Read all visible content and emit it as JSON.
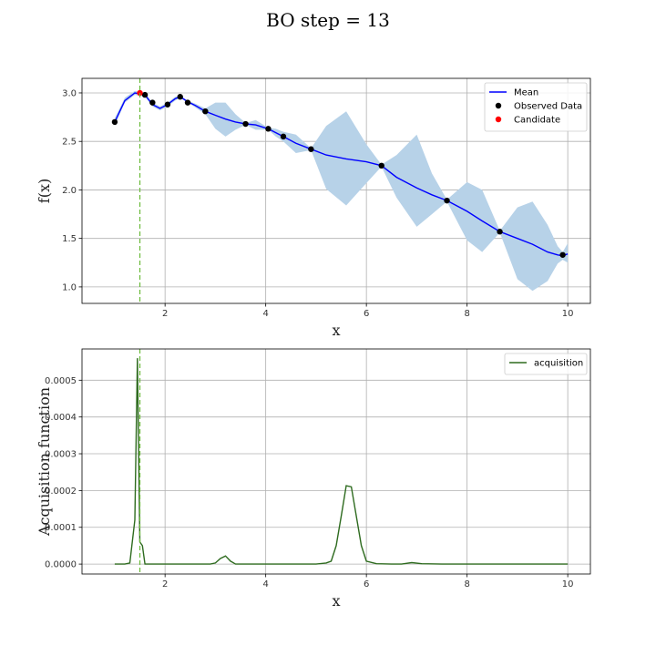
{
  "figure": {
    "title": "BO step = 13"
  },
  "colors": {
    "mean": "#0000ff",
    "band": "#b7d2e8",
    "observed": "#000000",
    "candidate": "#ff0000",
    "acquisition": "#2e6b1f",
    "vline": "#6aba3a"
  },
  "chart_data": [
    {
      "type": "line",
      "xlabel": "x",
      "ylabel": "f(x)",
      "xlim": [
        0.35,
        10.45
      ],
      "ylim": [
        0.83,
        3.15
      ],
      "xticks": [
        2,
        4,
        6,
        8,
        10
      ],
      "yticks": [
        1.0,
        1.5,
        2.0,
        2.5,
        3.0
      ],
      "grid": true,
      "legend": {
        "placement": "top-right",
        "entries": [
          "Mean",
          "Observed Data",
          "Candidate"
        ]
      },
      "candidate_x": 1.5,
      "series": [
        {
          "name": "Mean",
          "x": [
            1.0,
            1.2,
            1.4,
            1.6,
            1.75,
            1.9,
            2.05,
            2.2,
            2.3,
            2.45,
            2.6,
            2.8,
            3.0,
            3.2,
            3.4,
            3.6,
            3.8,
            4.05,
            4.2,
            4.35,
            4.6,
            4.9,
            5.2,
            5.6,
            6.0,
            6.3,
            6.6,
            7.0,
            7.3,
            7.6,
            8.0,
            8.3,
            8.65,
            9.0,
            9.3,
            9.6,
            9.8,
            9.9,
            10.0
          ],
          "y": [
            2.7,
            2.92,
            3.0,
            2.98,
            2.88,
            2.84,
            2.88,
            2.94,
            2.96,
            2.91,
            2.87,
            2.81,
            2.77,
            2.73,
            2.7,
            2.68,
            2.67,
            2.63,
            2.59,
            2.55,
            2.48,
            2.42,
            2.36,
            2.32,
            2.29,
            2.25,
            2.13,
            2.02,
            1.95,
            1.89,
            1.78,
            1.68,
            1.57,
            1.5,
            1.44,
            1.36,
            1.33,
            1.32,
            1.34
          ]
        },
        {
          "name": "confidence",
          "x": [
            1.0,
            1.2,
            1.4,
            1.6,
            1.75,
            1.9,
            2.05,
            2.2,
            2.3,
            2.45,
            2.6,
            2.8,
            3.0,
            3.2,
            3.4,
            3.6,
            3.8,
            4.05,
            4.2,
            4.35,
            4.6,
            4.9,
            5.2,
            5.6,
            6.0,
            6.3,
            6.6,
            7.0,
            7.3,
            7.6,
            8.0,
            8.3,
            8.65,
            9.0,
            9.3,
            9.6,
            9.8,
            9.9,
            10.0
          ],
          "lower": [
            2.66,
            2.9,
            2.98,
            2.96,
            2.86,
            2.82,
            2.86,
            2.92,
            2.95,
            2.9,
            2.85,
            2.78,
            2.63,
            2.55,
            2.62,
            2.67,
            2.62,
            2.62,
            2.55,
            2.5,
            2.38,
            2.41,
            2.01,
            1.84,
            2.07,
            2.24,
            1.92,
            1.62,
            1.75,
            1.88,
            1.48,
            1.36,
            1.56,
            1.08,
            0.96,
            1.06,
            1.24,
            1.28,
            1.25
          ],
          "upper": [
            2.74,
            2.95,
            3.02,
            3.0,
            2.9,
            2.86,
            2.9,
            2.96,
            2.97,
            2.92,
            2.89,
            2.84,
            2.9,
            2.9,
            2.78,
            2.69,
            2.72,
            2.64,
            2.63,
            2.6,
            2.57,
            2.43,
            2.66,
            2.81,
            2.47,
            2.26,
            2.36,
            2.57,
            2.17,
            1.9,
            2.08,
            2.0,
            1.58,
            1.82,
            1.88,
            1.64,
            1.42,
            1.36,
            1.45
          ]
        },
        {
          "name": "Observed Data",
          "x": [
            1.0,
            1.6,
            1.75,
            2.05,
            2.3,
            2.45,
            2.8,
            3.6,
            4.05,
            4.35,
            4.9,
            6.3,
            7.6,
            8.65,
            9.9
          ],
          "y": [
            2.7,
            2.98,
            2.9,
            2.88,
            2.96,
            2.9,
            2.81,
            2.68,
            2.63,
            2.55,
            2.42,
            2.25,
            1.89,
            1.57,
            1.33
          ]
        },
        {
          "name": "Candidate",
          "x": [
            1.5
          ],
          "y": [
            3.0
          ]
        }
      ]
    },
    {
      "type": "line",
      "xlabel": "x",
      "ylabel": "Acquisition function",
      "xlim": [
        0.35,
        10.45
      ],
      "ylim": [
        -2.7e-05,
        0.000585
      ],
      "xticks": [
        2,
        4,
        6,
        8,
        10
      ],
      "yticks": [
        0.0,
        0.0001,
        0.0002,
        0.0003,
        0.0004,
        0.0005
      ],
      "ytick_labels": [
        "0.0000",
        "0.0001",
        "0.0002",
        "0.0003",
        "0.0004",
        "0.0005"
      ],
      "grid": true,
      "legend": {
        "placement": "top-right",
        "entries": [
          "acquisition"
        ]
      },
      "candidate_x": 1.5,
      "series": [
        {
          "name": "acquisition",
          "x": [
            1.0,
            1.1,
            1.2,
            1.3,
            1.4,
            1.45,
            1.5,
            1.55,
            1.6,
            1.7,
            1.8,
            2.0,
            2.5,
            2.9,
            3.0,
            3.1,
            3.2,
            3.3,
            3.4,
            3.6,
            4.0,
            4.5,
            5.0,
            5.2,
            5.3,
            5.4,
            5.5,
            5.6,
            5.7,
            5.8,
            5.9,
            6.0,
            6.2,
            6.5,
            6.7,
            6.9,
            7.1,
            7.5,
            8.0,
            9.0,
            10.0
          ],
          "y": [
            0.0,
            0.0,
            0.0,
            3e-06,
            0.00012,
            0.00056,
            6e-05,
            5e-05,
            0.0,
            0.0,
            0.0,
            0.0,
            0.0,
            0.0,
            3e-06,
            1.5e-05,
            2.2e-05,
            8e-06,
            0.0,
            0.0,
            0.0,
            0.0,
            0.0,
            3e-06,
            8e-06,
            5e-05,
            0.00013,
            0.000213,
            0.00021,
            0.00013,
            5e-05,
            8e-06,
            1e-06,
            0.0,
            0.0,
            4e-06,
            1e-06,
            0.0,
            0.0,
            0.0,
            0.0
          ]
        }
      ]
    }
  ]
}
